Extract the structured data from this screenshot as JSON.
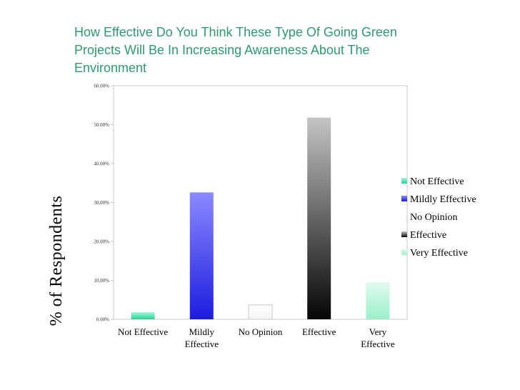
{
  "chart_data": {
    "type": "bar",
    "title_lines": [
      "How Effective Do You Think These Type Of Going Green",
      "Projects Will Be In Increasing Awareness About The",
      "Environment"
    ],
    "ylabel": "% of Respondents",
    "xlabel": "",
    "ylim": [
      0,
      60
    ],
    "yticks": [
      0,
      10,
      20,
      30,
      40,
      50,
      60
    ],
    "ytick_labels": [
      "0.00%",
      "10.00%",
      "20.00%",
      "30.00%",
      "40.00%",
      "50.00%",
      "60.00%"
    ],
    "categories": [
      {
        "lines": [
          "Not Effective"
        ]
      },
      {
        "lines": [
          "Mildly",
          "Effective"
        ]
      },
      {
        "lines": [
          "No Opinion"
        ]
      },
      {
        "lines": [
          "Effective"
        ]
      },
      {
        "lines": [
          "Very",
          "Effective"
        ]
      }
    ],
    "values": [
      1.8,
      32.6,
      3.7,
      51.8,
      9.5
    ],
    "colors": [
      "#3de0a8",
      "#3b3be8",
      "#ffffff",
      "#555555",
      "#a8f0d2"
    ],
    "legend": [
      "Not Effective",
      "Mildly Effective",
      "No Opinion",
      "Effective",
      "Very Effective"
    ],
    "legend_position": "right"
  }
}
